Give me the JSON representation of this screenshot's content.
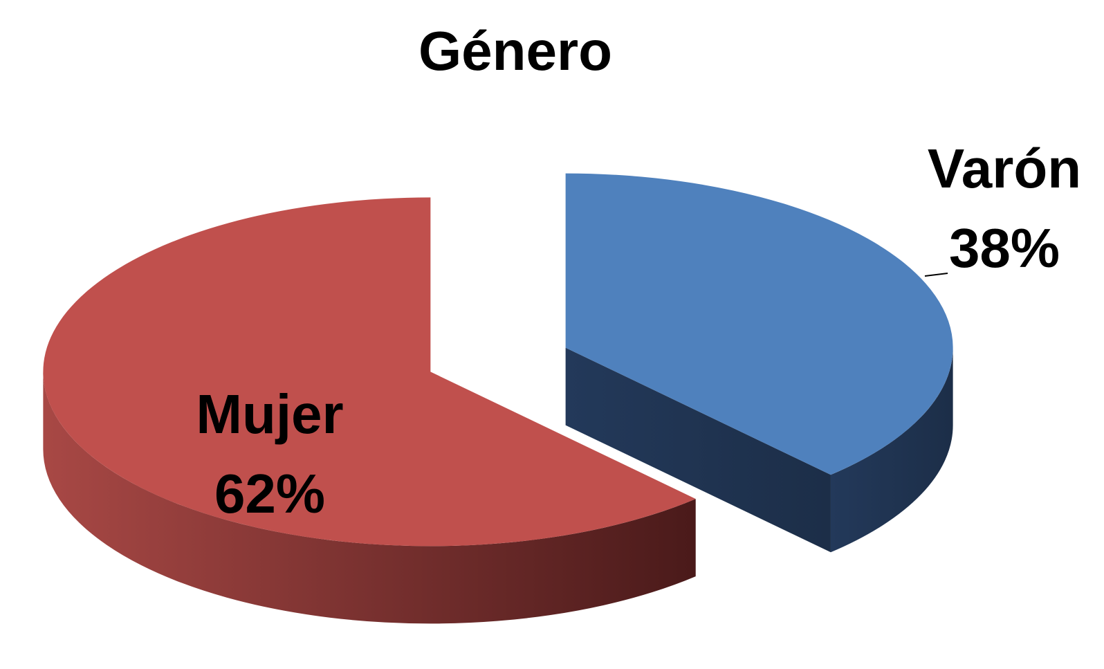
{
  "chart_data": {
    "type": "pie",
    "title": "Género",
    "categories": [
      "Mujer",
      "Varón"
    ],
    "values": [
      62,
      38
    ],
    "value_labels": [
      "62%",
      "38%"
    ],
    "colors": [
      "#c0504d",
      "#4f81bd"
    ]
  }
}
